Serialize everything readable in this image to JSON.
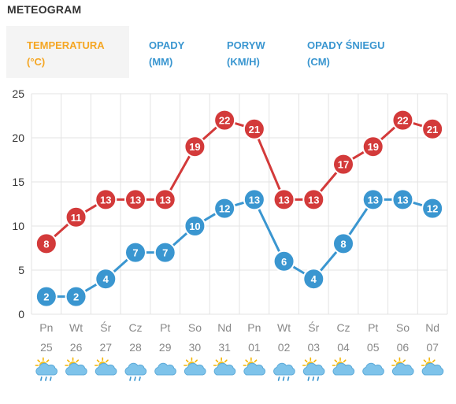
{
  "title": "METEOGRAM",
  "tabs": [
    {
      "line1": "TEMPERATURA",
      "line2": "(°C)",
      "active": true
    },
    {
      "line1": "OPADY",
      "line2": "(MM)",
      "active": false
    },
    {
      "line1": "PORYW",
      "line2": "(KM/H)",
      "active": false
    },
    {
      "line1": "OPADY ŚNIEGU",
      "line2": "(CM)",
      "active": false
    }
  ],
  "colors": {
    "red": "#d33a3a",
    "blue": "#3a96d0",
    "grid": "#e3e3e3",
    "axis_text": "#333333",
    "day_text": "#888888",
    "active_tab": "#f5a623"
  },
  "chart_data": {
    "type": "line",
    "ylim": [
      0,
      25
    ],
    "yticks": [
      0,
      5,
      10,
      15,
      20,
      25
    ],
    "categories": [
      {
        "day": "Pn",
        "date": "25",
        "icon": "sun-cloud-rain-icon"
      },
      {
        "day": "Wt",
        "date": "26",
        "icon": "sun-cloud-icon"
      },
      {
        "day": "Śr",
        "date": "27",
        "icon": "sun-cloud-icon"
      },
      {
        "day": "Cz",
        "date": "28",
        "icon": "cloud-rain-icon"
      },
      {
        "day": "Pt",
        "date": "29",
        "icon": "cloud-icon"
      },
      {
        "day": "So",
        "date": "30",
        "icon": "sun-cloud-icon"
      },
      {
        "day": "Nd",
        "date": "31",
        "icon": "sun-cloud-icon"
      },
      {
        "day": "Pn",
        "date": "01",
        "icon": "sun-cloud-icon"
      },
      {
        "day": "Wt",
        "date": "02",
        "icon": "cloud-rain-icon"
      },
      {
        "day": "Śr",
        "date": "03",
        "icon": "sun-cloud-rain-icon"
      },
      {
        "day": "Cz",
        "date": "04",
        "icon": "sun-cloud-icon"
      },
      {
        "day": "Pt",
        "date": "05",
        "icon": "cloud-icon"
      },
      {
        "day": "So",
        "date": "06",
        "icon": "sun-cloud-icon"
      },
      {
        "day": "Nd",
        "date": "07",
        "icon": "sun-cloud-icon"
      }
    ],
    "series": [
      {
        "color": "#d33a3a",
        "values": [
          8,
          11,
          13,
          13,
          13,
          19,
          22,
          21,
          13,
          13,
          17,
          19,
          22,
          21
        ]
      },
      {
        "color": "#3a96d0",
        "values": [
          2,
          2,
          4,
          7,
          7,
          10,
          12,
          13,
          6,
          4,
          8,
          13,
          13,
          12
        ]
      }
    ]
  }
}
